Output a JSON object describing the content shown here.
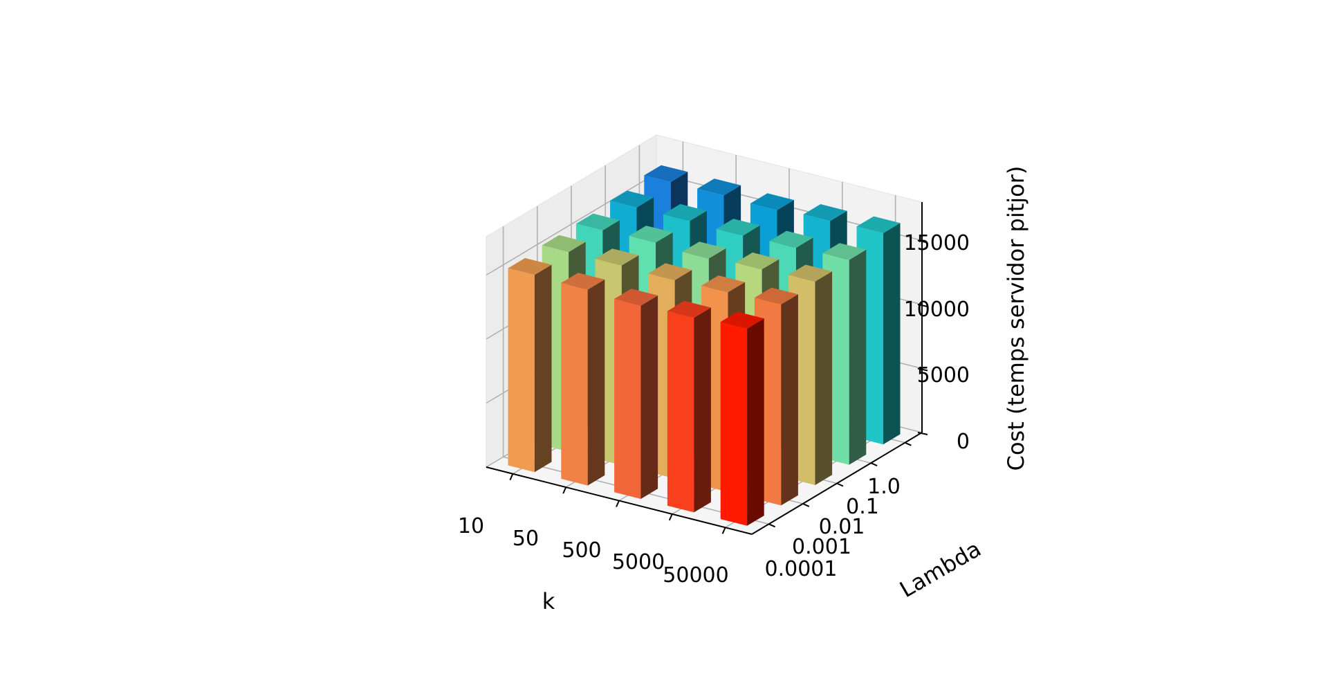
{
  "chart_data": {
    "type": "bar3d",
    "xlabel": "k",
    "ylabel": "Lambda",
    "zlabel": "Cost (temps servidor pitjor)",
    "x_categories": [
      "10",
      "50",
      "500",
      "5000",
      "50000"
    ],
    "y_categories": [
      "0.0001",
      "0.001",
      "0.01",
      "0.1",
      "1.0"
    ],
    "z_ticks": [
      "0",
      "5000",
      "10000",
      "15000"
    ],
    "zlim": [
      0,
      18000
    ],
    "grid": true,
    "values": [
      [
        15400,
        15300,
        15100,
        15200,
        15400
      ],
      [
        15600,
        15600,
        15500,
        15600,
        15700
      ],
      [
        15700,
        15800,
        15600,
        15800,
        15900
      ],
      [
        15900,
        15900,
        15800,
        15900,
        16000
      ],
      [
        16300,
        16300,
        16200,
        16400,
        16500
      ]
    ],
    "colormap": "rainbow"
  }
}
